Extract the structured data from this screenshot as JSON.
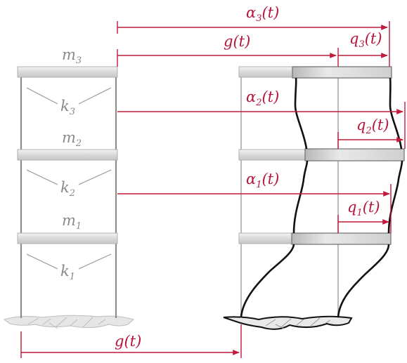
{
  "left_frame": {
    "masses": [
      {
        "symbol": "m",
        "sub": "3"
      },
      {
        "symbol": "m",
        "sub": "2"
      },
      {
        "symbol": "m",
        "sub": "1"
      }
    ],
    "springs": [
      {
        "symbol": "k",
        "sub": "3"
      },
      {
        "symbol": "k",
        "sub": "2"
      },
      {
        "symbol": "k",
        "sub": "1"
      }
    ]
  },
  "displacements": {
    "alpha3": {
      "base": "α",
      "sub": "3",
      "arg": "(t)"
    },
    "g_top": {
      "text": "g(t)"
    },
    "q3": {
      "base": "q",
      "sub": "3",
      "arg": "(t)"
    },
    "alpha2": {
      "base": "α",
      "sub": "2",
      "arg": "(t)"
    },
    "q2": {
      "base": "q",
      "sub": "2",
      "arg": "(t)"
    },
    "alpha1": {
      "base": "α",
      "sub": "1",
      "arg": "(t)"
    },
    "q1": {
      "base": "q",
      "sub": "1",
      "arg": "(t)"
    },
    "g_bottom": {
      "text": "g(t)"
    }
  },
  "colors": {
    "accent": "#c01a3c",
    "column": "#8c8c8c",
    "deformed": "#111111",
    "label_grey": "#8a8a8a"
  }
}
